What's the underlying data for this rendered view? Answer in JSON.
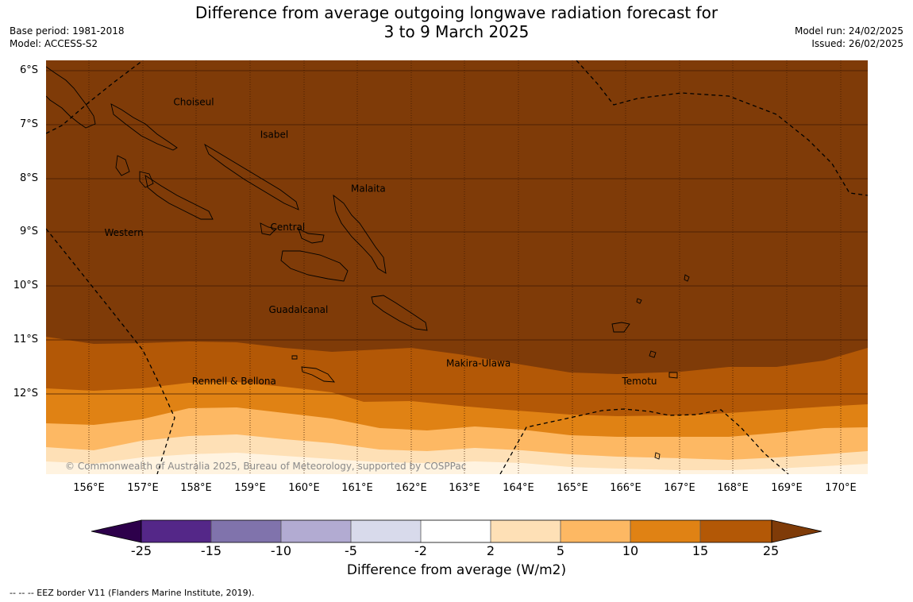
{
  "header": {
    "title_line1": "Difference from average outgoing longwave radiation forecast for",
    "title_line2": "3 to 9 March 2025",
    "base_period": "Base period: 1981-2018",
    "model": "Model: ACCESS-S2",
    "model_run": "Model run: 24/02/2025",
    "issued": "Issued: 26/02/2025"
  },
  "map": {
    "lat_ticks": [
      "6°S",
      "7°S",
      "8°S",
      "9°S",
      "10°S",
      "11°S",
      "12°S"
    ],
    "lat_values": [
      -6,
      -7,
      -8,
      -9,
      -10,
      -11,
      -12
    ],
    "lon_ticks": [
      "156°E",
      "157°E",
      "158°E",
      "159°E",
      "160°E",
      "161°E",
      "162°E",
      "163°E",
      "164°E",
      "165°E",
      "166°E",
      "167°E",
      "168°E",
      "169°E",
      "170°E"
    ],
    "lon_values": [
      156,
      157,
      158,
      159,
      160,
      161,
      162,
      163,
      164,
      165,
      166,
      167,
      168,
      169,
      170
    ],
    "extent": {
      "lon_min": 155.2,
      "lon_max": 170.5,
      "lat_min": -13.35,
      "lat_max": -5.8
    },
    "provinces": [
      {
        "name": "Choiseul",
        "lon": 157.95,
        "lat": -6.62
      },
      {
        "name": "Isabel",
        "lon": 159.45,
        "lat": -7.21
      },
      {
        "name": "Malaita",
        "lon": 161.2,
        "lat": -8.2
      },
      {
        "name": "Western",
        "lon": 156.65,
        "lat": -9.0
      },
      {
        "name": "Central",
        "lon": 159.7,
        "lat": -8.9
      },
      {
        "name": "Guadalcanal",
        "lon": 159.9,
        "lat": -10.41
      },
      {
        "name": "Makira-Ulawa",
        "lon": 163.25,
        "lat": -11.39
      },
      {
        "name": "Rennell & Bellona",
        "lon": 158.7,
        "lat": -11.71
      },
      {
        "name": "Temotu",
        "lon": 166.25,
        "lat": -11.71
      }
    ],
    "copyright": "© Commonwealth of Australia 2025, Bureau of Meteorology, supported by COSPPac",
    "background_color": "#7f3b08"
  },
  "colorbar": {
    "labels": [
      "-25",
      "-15",
      "-10",
      "-5",
      "-2",
      "2",
      "5",
      "10",
      "15",
      "25"
    ],
    "colors": [
      "#542788",
      "#8073ac",
      "#b2abd2",
      "#d8daeb",
      "#ffffff",
      "#fee0b6",
      "#fdb863",
      "#e08214",
      "#b35806"
    ],
    "under_color": "#2d004b",
    "over_color": "#7f3b08",
    "title": "Difference from average (W/m2)"
  },
  "footer": {
    "eez_legend": "--  --  -- EEZ border V11 (Flanders Marine Institute, 2019)."
  }
}
